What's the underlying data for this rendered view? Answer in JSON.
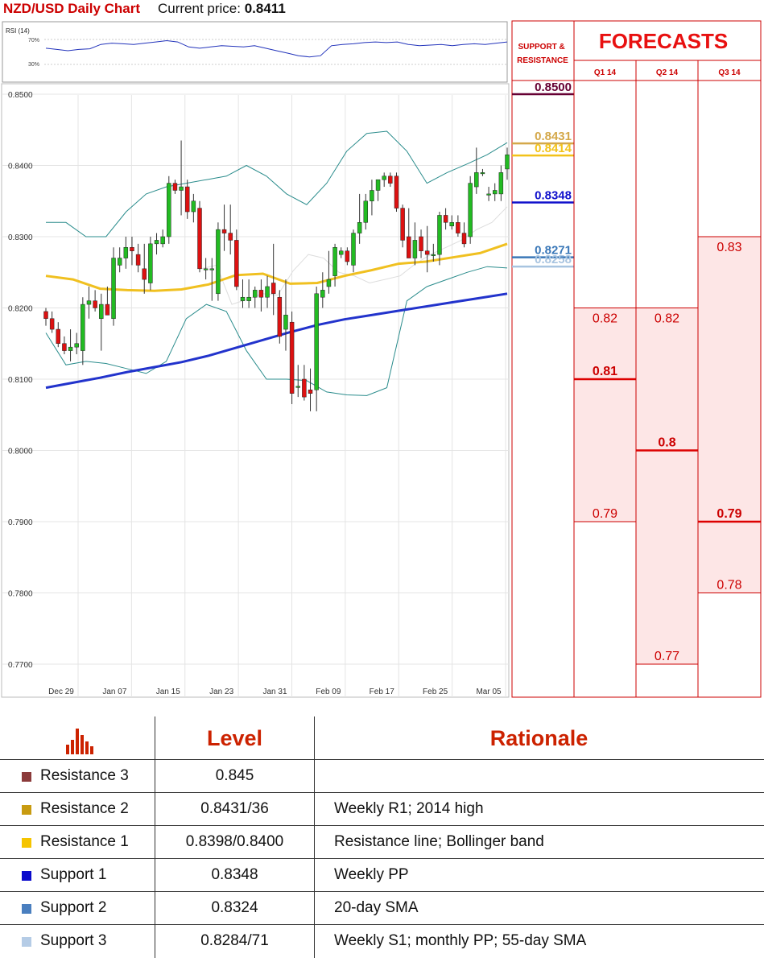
{
  "header": {
    "title": "NZD/USD Daily Chart",
    "current_price_label": "Current price:",
    "current_price": "0.8411"
  },
  "rsi": {
    "label": "RSI (14)",
    "upper": "70%",
    "lower": "30%"
  },
  "chart_data": {
    "type": "candlestick",
    "title": "NZD/USD Daily Chart",
    "ylim": [
      0.77,
      0.85
    ],
    "yticks": [
      "0.8500",
      "0.8400",
      "0.8300",
      "0.8200",
      "0.8100",
      "0.8000",
      "0.7900",
      "0.7800",
      "0.7700"
    ],
    "xticks": [
      "Dec 29",
      "Jan 07",
      "Jan 15",
      "Jan 23",
      "Jan 31",
      "Feb 09",
      "Feb 17",
      "Feb 25",
      "Mar 05"
    ],
    "candles": [
      {
        "o": 0.8195,
        "h": 0.82,
        "l": 0.8175,
        "c": 0.8185
      },
      {
        "o": 0.8185,
        "h": 0.8195,
        "l": 0.8165,
        "c": 0.817
      },
      {
        "o": 0.817,
        "h": 0.818,
        "l": 0.8145,
        "c": 0.815
      },
      {
        "o": 0.815,
        "h": 0.816,
        "l": 0.8135,
        "c": 0.814
      },
      {
        "o": 0.814,
        "h": 0.817,
        "l": 0.8125,
        "c": 0.8145
      },
      {
        "o": 0.8145,
        "h": 0.8165,
        "l": 0.8135,
        "c": 0.815
      },
      {
        "o": 0.814,
        "h": 0.8215,
        "l": 0.812,
        "c": 0.8205
      },
      {
        "o": 0.8205,
        "h": 0.823,
        "l": 0.8185,
        "c": 0.821
      },
      {
        "o": 0.821,
        "h": 0.8225,
        "l": 0.8195,
        "c": 0.82
      },
      {
        "o": 0.8185,
        "h": 0.822,
        "l": 0.814,
        "c": 0.8205
      },
      {
        "o": 0.8205,
        "h": 0.823,
        "l": 0.819,
        "c": 0.819
      },
      {
        "o": 0.8185,
        "h": 0.8285,
        "l": 0.8175,
        "c": 0.827
      },
      {
        "o": 0.826,
        "h": 0.8285,
        "l": 0.825,
        "c": 0.827
      },
      {
        "o": 0.827,
        "h": 0.83,
        "l": 0.8255,
        "c": 0.8285
      },
      {
        "o": 0.8285,
        "h": 0.83,
        "l": 0.826,
        "c": 0.828
      },
      {
        "o": 0.8275,
        "h": 0.829,
        "l": 0.825,
        "c": 0.826
      },
      {
        "o": 0.8255,
        "h": 0.829,
        "l": 0.822,
        "c": 0.824
      },
      {
        "o": 0.8235,
        "h": 0.83,
        "l": 0.8225,
        "c": 0.829
      },
      {
        "o": 0.829,
        "h": 0.8305,
        "l": 0.8275,
        "c": 0.8295
      },
      {
        "o": 0.829,
        "h": 0.831,
        "l": 0.8285,
        "c": 0.83
      },
      {
        "o": 0.83,
        "h": 0.8385,
        "l": 0.829,
        "c": 0.8375
      },
      {
        "o": 0.8375,
        "h": 0.838,
        "l": 0.836,
        "c": 0.8365
      },
      {
        "o": 0.8365,
        "h": 0.8435,
        "l": 0.833,
        "c": 0.837
      },
      {
        "o": 0.837,
        "h": 0.838,
        "l": 0.8325,
        "c": 0.8335
      },
      {
        "o": 0.8335,
        "h": 0.836,
        "l": 0.832,
        "c": 0.835
      },
      {
        "o": 0.834,
        "h": 0.835,
        "l": 0.825,
        "c": 0.8255
      },
      {
        "o": 0.8255,
        "h": 0.827,
        "l": 0.824,
        "c": 0.8255
      },
      {
        "o": 0.8255,
        "h": 0.827,
        "l": 0.821,
        "c": 0.8255
      },
      {
        "o": 0.822,
        "h": 0.832,
        "l": 0.821,
        "c": 0.831
      },
      {
        "o": 0.831,
        "h": 0.8345,
        "l": 0.828,
        "c": 0.8305
      },
      {
        "o": 0.8305,
        "h": 0.8345,
        "l": 0.8275,
        "c": 0.8295
      },
      {
        "o": 0.8295,
        "h": 0.831,
        "l": 0.8225,
        "c": 0.823
      },
      {
        "o": 0.821,
        "h": 0.824,
        "l": 0.82,
        "c": 0.8215
      },
      {
        "o": 0.821,
        "h": 0.824,
        "l": 0.82,
        "c": 0.8215
      },
      {
        "o": 0.8215,
        "h": 0.823,
        "l": 0.82,
        "c": 0.8225
      },
      {
        "o": 0.8225,
        "h": 0.824,
        "l": 0.8195,
        "c": 0.8215
      },
      {
        "o": 0.8215,
        "h": 0.8245,
        "l": 0.82,
        "c": 0.823
      },
      {
        "o": 0.8235,
        "h": 0.829,
        "l": 0.819,
        "c": 0.822
      },
      {
        "o": 0.8215,
        "h": 0.8225,
        "l": 0.815,
        "c": 0.816
      },
      {
        "o": 0.817,
        "h": 0.824,
        "l": 0.814,
        "c": 0.819
      },
      {
        "o": 0.818,
        "h": 0.8195,
        "l": 0.8065,
        "c": 0.808
      },
      {
        "o": 0.809,
        "h": 0.812,
        "l": 0.8075,
        "c": 0.809
      },
      {
        "o": 0.81,
        "h": 0.812,
        "l": 0.807,
        "c": 0.8075
      },
      {
        "o": 0.8085,
        "h": 0.8115,
        "l": 0.8055,
        "c": 0.808
      },
      {
        "o": 0.8085,
        "h": 0.823,
        "l": 0.8055,
        "c": 0.822
      },
      {
        "o": 0.8215,
        "h": 0.825,
        "l": 0.82,
        "c": 0.8225
      },
      {
        "o": 0.823,
        "h": 0.828,
        "l": 0.822,
        "c": 0.824
      },
      {
        "o": 0.8245,
        "h": 0.829,
        "l": 0.823,
        "c": 0.8285
      },
      {
        "o": 0.8275,
        "h": 0.8285,
        "l": 0.827,
        "c": 0.828
      },
      {
        "o": 0.828,
        "h": 0.8285,
        "l": 0.826,
        "c": 0.8265
      },
      {
        "o": 0.826,
        "h": 0.831,
        "l": 0.825,
        "c": 0.8305
      },
      {
        "o": 0.8305,
        "h": 0.836,
        "l": 0.829,
        "c": 0.832
      },
      {
        "o": 0.832,
        "h": 0.836,
        "l": 0.831,
        "c": 0.835
      },
      {
        "o": 0.835,
        "h": 0.838,
        "l": 0.833,
        "c": 0.8365
      },
      {
        "o": 0.8365,
        "h": 0.838,
        "l": 0.835,
        "c": 0.838
      },
      {
        "o": 0.838,
        "h": 0.839,
        "l": 0.837,
        "c": 0.8385
      },
      {
        "o": 0.8385,
        "h": 0.839,
        "l": 0.837,
        "c": 0.8375
      },
      {
        "o": 0.8385,
        "h": 0.839,
        "l": 0.8335,
        "c": 0.834
      },
      {
        "o": 0.834,
        "h": 0.8345,
        "l": 0.8285,
        "c": 0.8295
      },
      {
        "o": 0.83,
        "h": 0.834,
        "l": 0.827,
        "c": 0.827
      },
      {
        "o": 0.827,
        "h": 0.832,
        "l": 0.826,
        "c": 0.8295
      },
      {
        "o": 0.83,
        "h": 0.831,
        "l": 0.827,
        "c": 0.828
      },
      {
        "o": 0.828,
        "h": 0.8315,
        "l": 0.825,
        "c": 0.8275
      },
      {
        "o": 0.8275,
        "h": 0.829,
        "l": 0.8265,
        "c": 0.8275
      },
      {
        "o": 0.8275,
        "h": 0.8335,
        "l": 0.826,
        "c": 0.833
      },
      {
        "o": 0.833,
        "h": 0.834,
        "l": 0.831,
        "c": 0.832
      },
      {
        "o": 0.8315,
        "h": 0.833,
        "l": 0.831,
        "c": 0.832
      },
      {
        "o": 0.832,
        "h": 0.833,
        "l": 0.83,
        "c": 0.8305
      },
      {
        "o": 0.8305,
        "h": 0.832,
        "l": 0.8285,
        "c": 0.829
      },
      {
        "o": 0.83,
        "h": 0.8385,
        "l": 0.829,
        "c": 0.8375
      },
      {
        "o": 0.837,
        "h": 0.8425,
        "l": 0.836,
        "c": 0.839
      },
      {
        "o": 0.839,
        "h": 0.8395,
        "l": 0.8385,
        "c": 0.839
      },
      {
        "o": 0.836,
        "h": 0.837,
        "l": 0.835,
        "c": 0.836
      },
      {
        "o": 0.836,
        "h": 0.8375,
        "l": 0.835,
        "c": 0.8365
      },
      {
        "o": 0.836,
        "h": 0.84,
        "l": 0.835,
        "c": 0.839
      },
      {
        "o": 0.8395,
        "h": 0.8425,
        "l": 0.838,
        "c": 0.8415
      }
    ],
    "sma200": [
      0.8088,
      0.8095,
      0.8102,
      0.811,
      0.8117,
      0.8124,
      0.8133,
      0.8144,
      0.8155,
      0.8166,
      0.8176,
      0.8184,
      0.819,
      0.8196,
      0.8202,
      0.8208,
      0.8214,
      0.822
    ],
    "sma55": [
      0.8245,
      0.824,
      0.8227,
      0.8225,
      0.8224,
      0.8226,
      0.8233,
      0.8246,
      0.8248,
      0.8234,
      0.8235,
      0.8245,
      0.8253,
      0.8262,
      0.8265,
      0.8271,
      0.8277,
      0.829
    ],
    "bb_upper": [
      0.832,
      0.832,
      0.83,
      0.83,
      0.8335,
      0.836,
      0.837,
      0.8375,
      0.838,
      0.8385,
      0.84,
      0.8385,
      0.836,
      0.8345,
      0.8375,
      0.842,
      0.8445,
      0.8448,
      0.842,
      0.8375,
      0.839,
      0.8402,
      0.8415,
      0.8432
    ],
    "bb_lower": [
      0.8165,
      0.812,
      0.8125,
      0.8122,
      0.8115,
      0.8108,
      0.8125,
      0.8185,
      0.8205,
      0.8195,
      0.814,
      0.81,
      0.81,
      0.8098,
      0.8082,
      0.8078,
      0.8077,
      0.8088,
      0.821,
      0.823,
      0.824,
      0.825,
      0.8258,
      0.8256
    ],
    "bb_mid": [
      0.8255,
      0.826,
      0.8205,
      0.8212,
      0.822,
      0.8218,
      0.8252,
      0.8275,
      0.827,
      0.825,
      0.8245,
      0.8235,
      0.824,
      0.8245,
      0.8262,
      0.8275,
      0.8285,
      0.8295,
      0.831,
      0.832,
      0.8342
    ],
    "rsi_values": [
      56,
      54,
      52,
      54,
      55,
      62,
      64,
      63,
      62,
      64,
      66,
      68,
      66,
      58,
      56,
      58,
      60,
      59,
      58,
      60,
      56,
      52,
      48,
      44,
      42,
      44,
      60,
      62,
      63,
      65,
      66,
      65,
      66,
      62,
      60,
      61,
      62,
      60,
      62,
      63,
      62,
      64,
      66
    ],
    "rsi_levels": [
      70,
      30
    ]
  },
  "sr_panel": {
    "title": "SUPPORT & RESISTANCE",
    "levels": [
      {
        "value": 0.85,
        "label": "0.8500",
        "color": "#660033"
      },
      {
        "value": 0.8431,
        "label": "0.8431",
        "color": "#d4a84a"
      },
      {
        "value": 0.8414,
        "label": "0.8414",
        "color": "#f2c21a"
      },
      {
        "value": 0.8348,
        "label": "0.8348",
        "color": "#1010cc"
      },
      {
        "value": 0.8271,
        "label": "0.8271",
        "color": "#3b78b8"
      },
      {
        "value": 0.8258,
        "label": "0.8258",
        "color": "#a8c4e0"
      }
    ]
  },
  "forecasts": {
    "title": "FORECASTS",
    "quarters": [
      {
        "label": "Q1 14",
        "high": 0.82,
        "high_label": "0.82",
        "mid": 0.81,
        "mid_label": "0.81",
        "low": 0.79,
        "low_label": "0.79"
      },
      {
        "label": "Q2 14",
        "high": 0.82,
        "high_label": "0.82",
        "mid": 0.8,
        "mid_label": "0.8",
        "low": 0.77,
        "low_label": "0.77"
      },
      {
        "label": "Q3 14",
        "high": 0.83,
        "high_label": "0.83",
        "mid": 0.79,
        "mid_label": "0.79",
        "low": 0.78,
        "low_label": "0.78"
      }
    ]
  },
  "table": {
    "level_header": "Level",
    "rationale_header": "Rationale",
    "rows": [
      {
        "label": "Resistance 3",
        "level": "0.845",
        "rationale": "",
        "color": "#8b3a3a"
      },
      {
        "label": "Resistance 2",
        "level": "0.8431/36",
        "rationale": "Weekly R1; 2014 high",
        "color": "#c89b10"
      },
      {
        "label": "Resistance 1",
        "level": "0.8398/0.8400",
        "rationale": "Resistance line; Bollinger band",
        "color": "#f5c400"
      },
      {
        "label": "Support 1",
        "level": "0.8348",
        "rationale": "Weekly PP",
        "color": "#0a0acc"
      },
      {
        "label": "Support 2",
        "level": "0.8324",
        "rationale": "20-day SMA",
        "color": "#4a7fbf"
      },
      {
        "label": "Support 3",
        "level": "0.8284/71",
        "rationale": "Weekly S1; monthly PP; 55-day SMA",
        "color": "#b5cce6"
      }
    ]
  }
}
